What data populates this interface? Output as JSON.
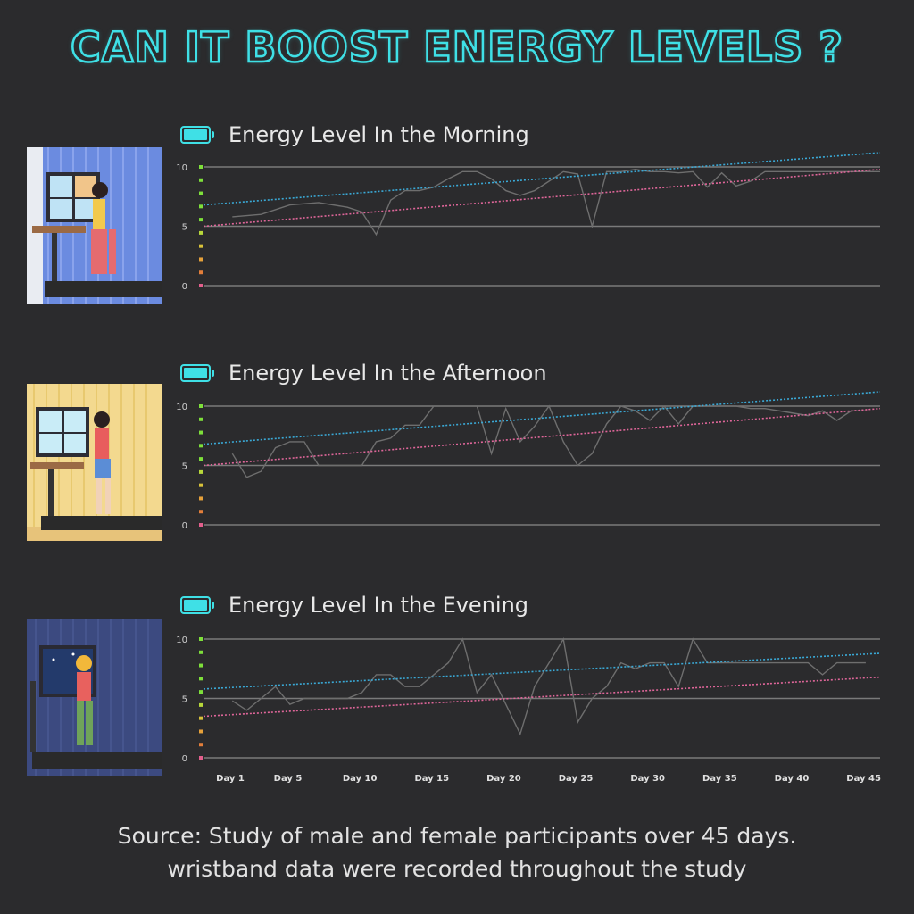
{
  "title": "CAN  IT BOOST ENERGY LEVELS ?",
  "footer": {
    "line1": "Source: Study of male and female participants over 45 days.",
    "line2": "wristband data were recorded throughout the study"
  },
  "colors": {
    "accent": "#3fe0e6",
    "trend_blue": "#3aa9d6",
    "trend_pink": "#e0669a",
    "series_line": "#6e6e6e",
    "grid": "#7a7a7a"
  },
  "x_axis": {
    "ticks": [
      "Day 1",
      "Day 5",
      "Day 10",
      "Day 15",
      "Day 20",
      "Day 25",
      "Day 30",
      "Day 35",
      "Day 40",
      "Day 45"
    ],
    "tick_days": [
      1,
      5,
      10,
      15,
      20,
      25,
      30,
      35,
      40,
      45
    ]
  },
  "chart_data": [
    {
      "type": "line",
      "title": "Energy Level In the Morning",
      "y_ticks": [
        "10",
        "5",
        "0"
      ],
      "ylim": [
        0,
        10
      ],
      "xlim": [
        1,
        48
      ],
      "grid": true,
      "series": [
        {
          "role": "observed",
          "x": [
            3,
            5,
            7,
            9,
            11,
            12,
            13,
            14,
            15,
            16,
            17,
            18,
            19,
            20,
            21,
            22,
            23,
            24,
            25,
            26,
            27,
            28,
            29,
            30,
            31,
            32,
            33,
            34,
            35,
            36,
            37,
            38,
            39,
            40,
            41,
            42,
            43,
            44,
            45,
            46,
            47,
            48
          ],
          "values": [
            5.8,
            6.0,
            6.8,
            7.0,
            6.6,
            6.2,
            4.3,
            7.2,
            8.0,
            8.0,
            8.3,
            9.0,
            9.6,
            9.6,
            9.0,
            8.0,
            7.6,
            8.0,
            8.8,
            9.6,
            9.4,
            5.0,
            9.6,
            9.6,
            9.8,
            9.6,
            9.6,
            9.5,
            9.6,
            8.3,
            9.5,
            8.4,
            8.8,
            9.6,
            9.6,
            9.6,
            9.6,
            9.6,
            9.6,
            9.6,
            9.6,
            9.6
          ]
        },
        {
          "role": "trend",
          "color": "blue",
          "x": [
            1,
            48
          ],
          "values": [
            6.8,
            11.2
          ]
        },
        {
          "role": "trend",
          "color": "pink",
          "x": [
            1,
            48
          ],
          "values": [
            5.0,
            9.8
          ]
        }
      ]
    },
    {
      "type": "line",
      "title": "Energy Level In the Afternoon",
      "y_ticks": [
        "10",
        "5",
        "0"
      ],
      "ylim": [
        0,
        10
      ],
      "xlim": [
        1,
        48
      ],
      "grid": true,
      "series": [
        {
          "role": "observed",
          "x": [
            3,
            4,
            5,
            6,
            7,
            8,
            9,
            10,
            11,
            12,
            13,
            14,
            15,
            16,
            17,
            18,
            19,
            20,
            21,
            22,
            23,
            24,
            25,
            26,
            27,
            28,
            29,
            30,
            31,
            32,
            33,
            34,
            35,
            36,
            37,
            38,
            39,
            40,
            41,
            42,
            43,
            44,
            45,
            46,
            47
          ],
          "values": [
            6.0,
            4.0,
            4.5,
            6.5,
            7.0,
            7.0,
            5.0,
            5.0,
            5.0,
            5.0,
            7.0,
            7.3,
            8.4,
            8.4,
            10.0,
            10.0,
            10.0,
            10.0,
            6.0,
            9.8,
            7.0,
            8.3,
            10.0,
            7.0,
            5.0,
            6.0,
            8.5,
            10.0,
            9.6,
            8.8,
            10.0,
            8.5,
            10.0,
            10.0,
            10.0,
            10.0,
            9.8,
            9.8,
            9.6,
            9.4,
            9.2,
            9.6,
            8.8,
            9.6,
            9.6
          ]
        },
        {
          "role": "trend",
          "color": "blue",
          "x": [
            1,
            48
          ],
          "values": [
            6.8,
            11.2
          ]
        },
        {
          "role": "trend",
          "color": "pink",
          "x": [
            1,
            48
          ],
          "values": [
            5.0,
            9.8
          ]
        }
      ]
    },
    {
      "type": "line",
      "title": "Energy Level In the Evening",
      "y_ticks": [
        "10",
        "5",
        "0"
      ],
      "ylim": [
        0,
        10
      ],
      "xlim": [
        1,
        48
      ],
      "grid": true,
      "series": [
        {
          "role": "observed",
          "x": [
            3,
            4,
            5,
            6,
            7,
            8,
            9,
            10,
            11,
            12,
            13,
            14,
            15,
            16,
            17,
            18,
            19,
            20,
            21,
            22,
            23,
            24,
            25,
            26,
            27,
            28,
            29,
            30,
            31,
            32,
            33,
            34,
            35,
            36,
            37,
            38,
            39,
            40,
            41,
            42,
            43,
            44,
            45,
            46,
            47
          ],
          "values": [
            4.8,
            4.0,
            5.0,
            6.0,
            4.5,
            5.0,
            5.0,
            5.0,
            5.0,
            5.5,
            7.0,
            7.0,
            6.0,
            6.0,
            7.0,
            8.0,
            10.0,
            5.5,
            7.0,
            4.5,
            2.0,
            6.0,
            8.0,
            10.0,
            3.0,
            5.0,
            6.0,
            8.0,
            7.5,
            8.0,
            8.0,
            6.0,
            10.0,
            8.0,
            8.0,
            8.0,
            8.0,
            8.0,
            8.0,
            8.0,
            8.0,
            7.0,
            8.0,
            8.0,
            8.0
          ]
        },
        {
          "role": "trend",
          "color": "blue",
          "x": [
            1,
            48
          ],
          "values": [
            5.8,
            8.8
          ]
        },
        {
          "role": "trend",
          "color": "pink",
          "x": [
            1,
            48
          ],
          "values": [
            3.5,
            6.8
          ]
        }
      ]
    }
  ]
}
